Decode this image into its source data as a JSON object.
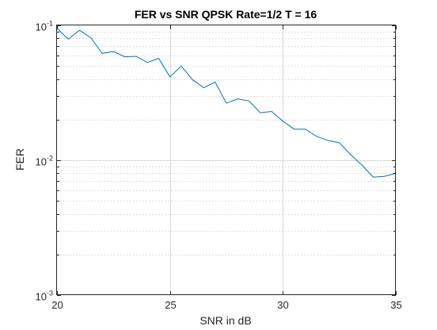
{
  "chart_data": {
    "type": "line",
    "title": "FER vs SNR QPSK Rate=1/2 T = 16",
    "xlabel": "SNR in dB",
    "ylabel": "FER",
    "xlim": [
      20,
      35
    ],
    "ylim": [
      0.001,
      0.1
    ],
    "yscale": "log",
    "xticks": [
      20,
      25,
      30,
      35
    ],
    "yticks": [
      {
        "value": 0.001,
        "base": "10",
        "exp": "-3"
      },
      {
        "value": 0.01,
        "base": "10",
        "exp": "-2"
      },
      {
        "value": 0.1,
        "base": "10",
        "exp": "-1"
      }
    ],
    "grid": true,
    "line_color": "#0072bd",
    "series": [
      {
        "x": [
          20,
          20.5,
          21,
          21.5,
          22,
          22.5,
          23,
          23.5,
          24,
          24.5,
          25,
          25.5,
          26,
          26.5,
          27,
          27.5,
          28,
          28.5,
          29,
          29.5,
          30,
          30.5,
          31,
          31.5,
          32,
          32.5,
          33,
          33.5,
          34,
          34.5,
          35
        ],
        "values": [
          0.095,
          0.079,
          0.092,
          0.081,
          0.062,
          0.064,
          0.0585,
          0.059,
          0.053,
          0.057,
          0.0415,
          0.05,
          0.0395,
          0.0345,
          0.038,
          0.0265,
          0.0285,
          0.0275,
          0.0225,
          0.023,
          0.0195,
          0.017,
          0.017,
          0.015,
          0.014,
          0.0135,
          0.011,
          0.0092,
          0.0075,
          0.0076,
          0.008
        ]
      }
    ]
  }
}
